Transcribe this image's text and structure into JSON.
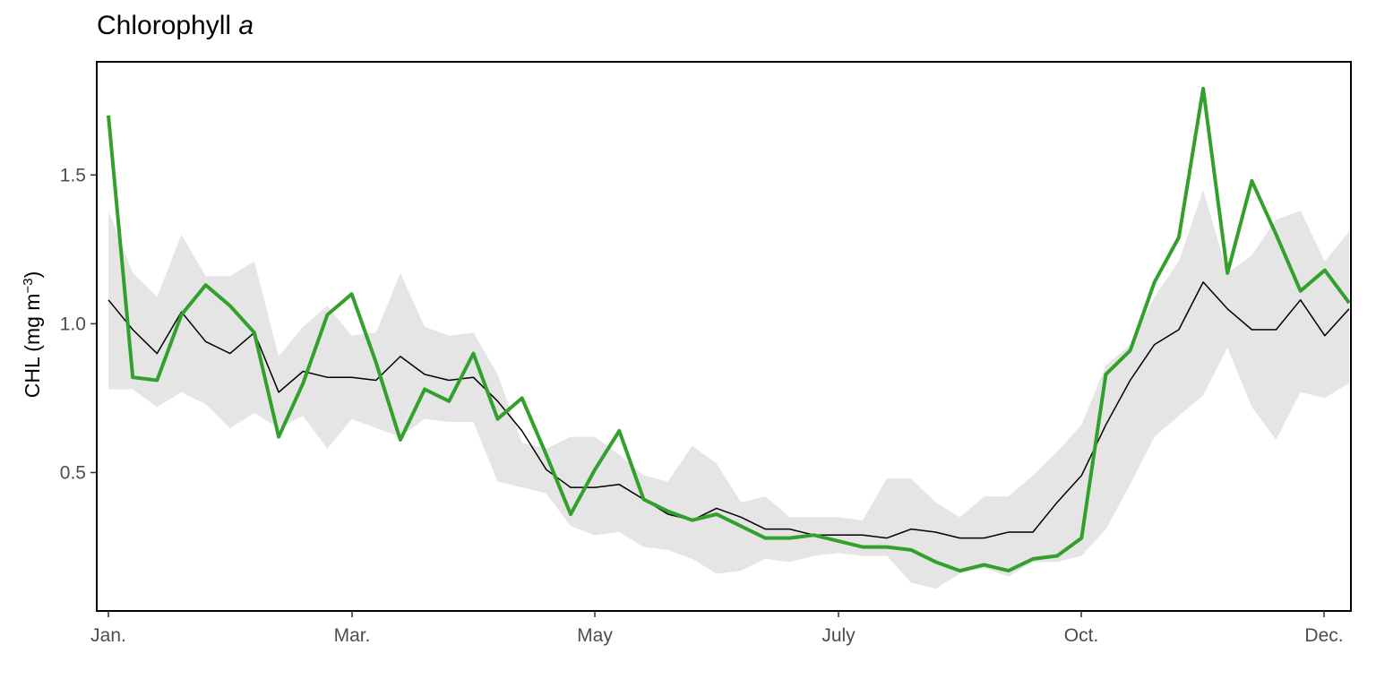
{
  "chart_data": {
    "type": "line",
    "title": "Chlorophyll",
    "title_italic": "a",
    "xlabel": "",
    "ylabel": "CHL (mg m",
    "ylabel_sup": "−3",
    "ylabel_close": ")",
    "x_ticks": [
      {
        "label": "Jan.",
        "doy": 1
      },
      {
        "label": "Mar.",
        "doy": 60
      },
      {
        "label": "May",
        "doy": 121
      },
      {
        "label": "July",
        "doy": 182
      },
      {
        "label": "Oct.",
        "doy": 274
      },
      {
        "label": "Dec.",
        "doy": 335
      }
    ],
    "y_ticks": [
      0.5,
      1.0,
      1.5
    ],
    "y_tick_labels": [
      "0.5",
      "1.0",
      "1.5"
    ],
    "xlim_doy": [
      -2,
      348
    ],
    "ylim": [
      0.035,
      1.88
    ],
    "grid": false,
    "x_day_of_year": [
      1,
      9,
      17,
      25,
      33,
      41,
      49,
      57,
      65,
      73,
      81,
      89,
      97,
      105,
      113,
      121,
      129,
      137,
      145,
      153,
      161,
      169,
      177,
      185,
      193,
      201,
      209,
      217,
      225,
      233,
      241,
      249,
      257,
      265,
      273,
      281,
      289,
      297,
      305,
      313,
      321,
      329,
      337,
      345
    ],
    "series": [
      {
        "role": "band",
        "color": "#e5e5e5",
        "lower": [
          0.78,
          0.78,
          0.72,
          0.77,
          0.73,
          0.65,
          0.7,
          0.65,
          0.69,
          0.58,
          0.68,
          0.65,
          0.62,
          0.68,
          0.67,
          0.67,
          0.47,
          0.45,
          0.43,
          0.32,
          0.29,
          0.3,
          0.25,
          0.24,
          0.21,
          0.16,
          0.17,
          0.21,
          0.2,
          0.22,
          0.23,
          0.22,
          0.22,
          0.13,
          0.11,
          0.16,
          0.18,
          0.15,
          0.2,
          0.2,
          0.22,
          0.31,
          0.46,
          0.62
        ],
        "upper": [
          1.38,
          1.17,
          1.09,
          1.3,
          1.16,
          1.16,
          1.21,
          0.89,
          0.99,
          1.06,
          0.96,
          0.97,
          1.17,
          0.99,
          0.96,
          0.97,
          0.83,
          0.6,
          0.58,
          0.62,
          0.62,
          0.56,
          0.49,
          0.47,
          0.59,
          0.53,
          0.4,
          0.42,
          0.35,
          0.35,
          0.35,
          0.34,
          0.48,
          0.48,
          0.4,
          0.35,
          0.42,
          0.42,
          0.49,
          0.57,
          0.66,
          0.86,
          0.93,
          1.09
        ]
      },
      {
        "role": "mean",
        "color": "#000000",
        "values": [
          1.08,
          0.98,
          0.9,
          1.04,
          0.94,
          0.9,
          0.97,
          0.77,
          0.84,
          0.82,
          0.82,
          0.81,
          0.89,
          0.83,
          0.81,
          0.82,
          0.74,
          0.64,
          0.51,
          0.45,
          0.45,
          0.46,
          0.41,
          0.36,
          0.34,
          0.38,
          0.35,
          0.31,
          0.31,
          0.29,
          0.29,
          0.29,
          0.28,
          0.31,
          0.3,
          0.28,
          0.28,
          0.3,
          0.3,
          0.4,
          0.49,
          0.66,
          0.81,
          0.93
        ]
      },
      {
        "role": "current",
        "color": "#33a02c",
        "values": [
          1.7,
          0.82,
          0.81,
          1.03,
          1.13,
          1.06,
          0.97,
          0.62,
          0.8,
          1.03,
          1.1,
          0.87,
          0.61,
          0.78,
          0.74,
          0.9,
          0.68,
          0.75,
          0.56,
          0.36,
          0.51,
          0.64,
          0.41,
          0.37,
          0.34,
          0.36,
          0.32,
          0.28,
          0.28,
          0.29,
          0.27,
          0.25,
          0.25,
          0.24,
          0.2,
          0.17,
          0.19,
          0.17,
          0.21,
          0.22,
          0.28,
          0.83,
          0.91,
          1.14
        ]
      }
    ],
    "x_day_of_year_tail": [
      353,
      361,
      361
    ],
    "tail": {
      "lower": [
        0.69,
        0.76,
        0.76
      ],
      "upper": [
        1.21,
        1.45,
        1.45
      ],
      "mean": [
        0.98,
        1.14,
        1.14
      ],
      "current": [
        1.29,
        1.79,
        1.79
      ]
    },
    "x_day_of_year_end": [
      369,
      377,
      385,
      393,
      401,
      409
    ],
    "end": {
      "lower": [
        0.92,
        0.72,
        0.61,
        0.77,
        0.75,
        0.8
      ],
      "upper": [
        1.17,
        1.23,
        1.35,
        1.38,
        1.21,
        1.31
      ],
      "mean": [
        1.05,
        0.98,
        0.98,
        1.08,
        0.96,
        1.05
      ],
      "current": [
        1.17,
        1.48,
        1.3,
        1.11,
        1.18,
        1.07
      ]
    }
  }
}
